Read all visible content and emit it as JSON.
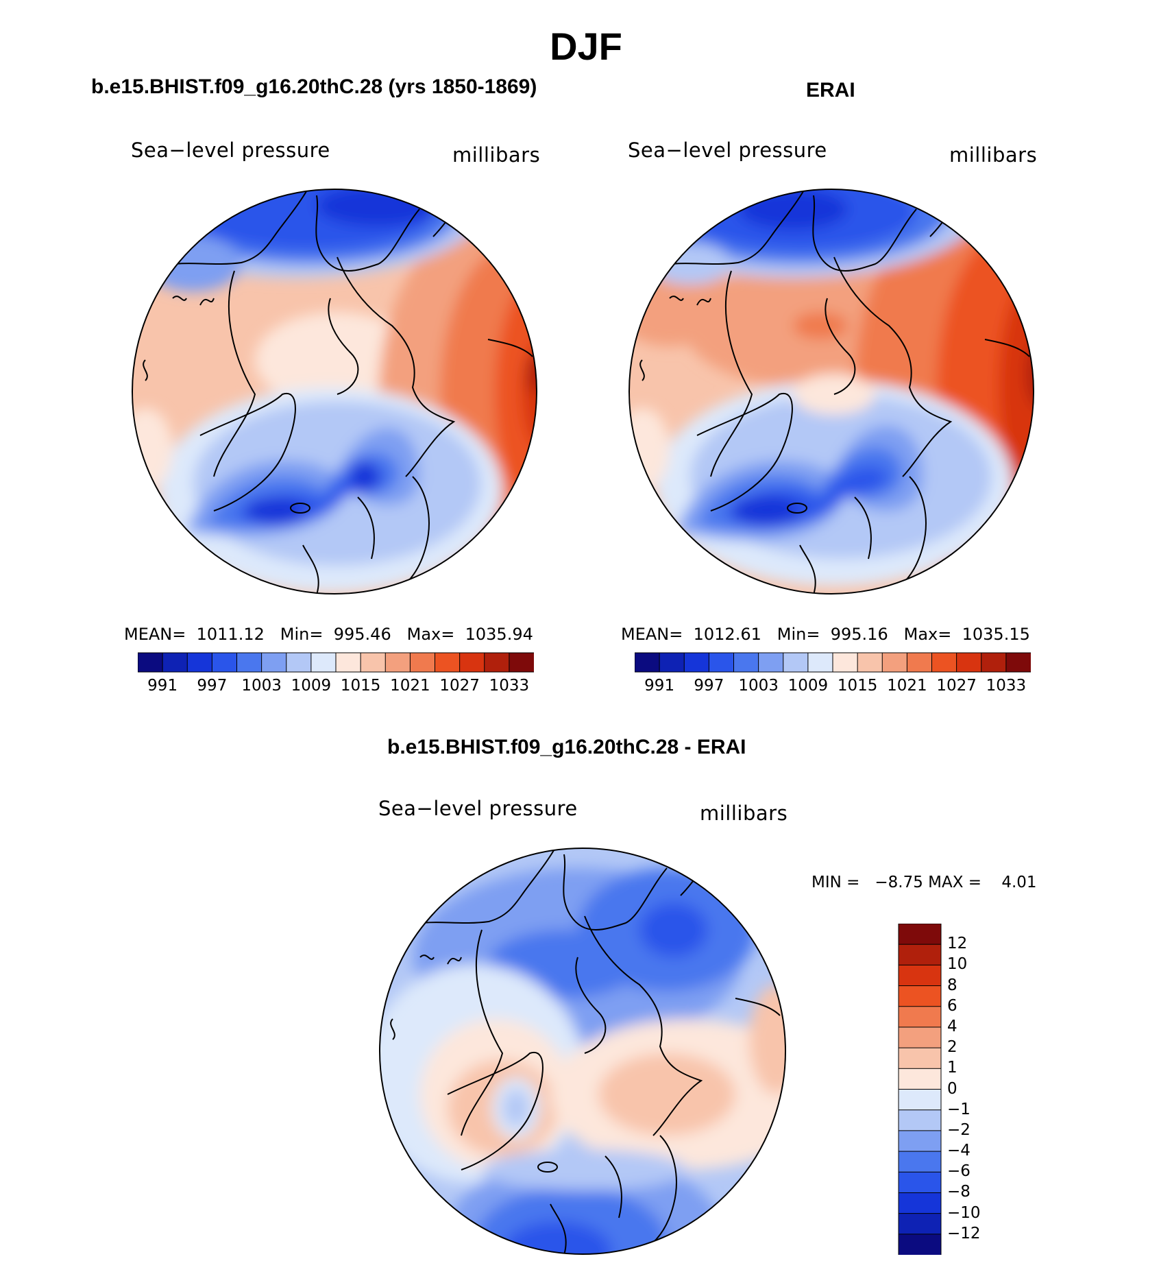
{
  "title": "DJF",
  "panels": {
    "model": {
      "title": "b.e15.BHIST.f09_g16.20thC.28 (yrs 1850-1869)",
      "left_label": "Sea−level pressure",
      "right_label": "millibars",
      "stats": {
        "mean_label": "MEAN=",
        "mean": "1011.12",
        "min_label": "Min=",
        "min": "995.46",
        "max_label": "Max=",
        "max": "1035.94"
      }
    },
    "obs": {
      "title": "ERAI",
      "left_label": "Sea−level pressure",
      "right_label": "millibars",
      "stats": {
        "mean_label": "MEAN=",
        "mean": "1012.61",
        "min_label": "Min=",
        "min": "995.16",
        "max_label": "Max=",
        "max": "1035.15"
      }
    },
    "diff": {
      "title": "b.e15.BHIST.f09_g16.20thC.28 - ERAI",
      "left_label": "Sea−level pressure",
      "right_label": "millibars",
      "minmax": {
        "min_label": "MIN =",
        "min": "−8.75",
        "max_label": "MAX =",
        "max": "4.01"
      }
    }
  },
  "colorbar_abs": {
    "tick_labels": [
      "991",
      "997",
      "1003",
      "1009",
      "1015",
      "1021",
      "1027",
      "1033"
    ],
    "colors": [
      "#0b0b80",
      "#0e22b4",
      "#1535d9",
      "#2a55ea",
      "#4a77ee",
      "#7e9ff2",
      "#b3c8f6",
      "#dde9fb",
      "#fde7dc",
      "#f8c4ab",
      "#f3a07e",
      "#f07a4e",
      "#ec5322",
      "#d83410",
      "#b0200c",
      "#7e0a0a"
    ]
  },
  "colorbar_diff": {
    "tick_labels": [
      "12",
      "10",
      "8",
      "6",
      "4",
      "2",
      "1",
      "0",
      "−1",
      "−2",
      "−4",
      "−6",
      "−8",
      "−10",
      "−12"
    ],
    "colors": [
      "#7e0a0a",
      "#b0200c",
      "#d83410",
      "#ec5322",
      "#f07a4e",
      "#f3a07e",
      "#f8c4ab",
      "#fde7dc",
      "#dde9fb",
      "#b3c8f6",
      "#7e9ff2",
      "#4a77ee",
      "#2a55ea",
      "#1535d9",
      "#0e22b4",
      "#0b0b80"
    ]
  }
}
